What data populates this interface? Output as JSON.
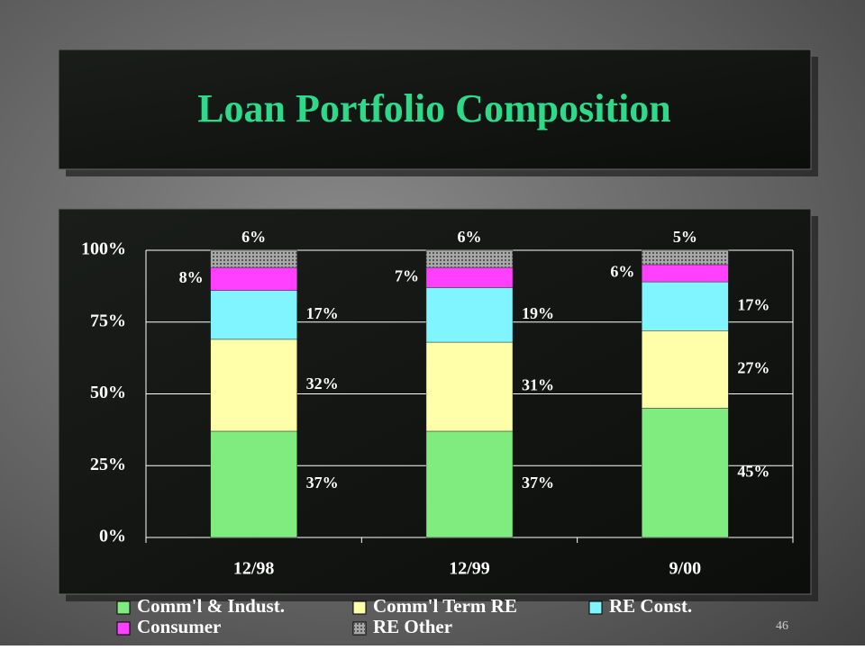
{
  "chart_data": {
    "type": "stacked_bar",
    "title": "Loan Portfolio Composition",
    "categories": [
      "12/98",
      "12/99",
      "9/00"
    ],
    "series": [
      {
        "name": "Comm'l & Indust.",
        "color": "#80ec80",
        "values": [
          37,
          37,
          45
        ],
        "value_labels": [
          "37%",
          "37%",
          "45%"
        ]
      },
      {
        "name": "Comm'l Term RE",
        "color": "#ffffaa",
        "values": [
          32,
          31,
          27
        ],
        "value_labels": [
          "32%",
          "31%",
          "27%"
        ]
      },
      {
        "name": "RE Const.",
        "color": "#80f4ff",
        "values": [
          17,
          19,
          17
        ],
        "value_labels": [
          "17%",
          "19%",
          "17%"
        ]
      },
      {
        "name": "Consumer",
        "color": "#ff40ff",
        "values": [
          8,
          7,
          6
        ],
        "value_labels": [
          "8%",
          "7%",
          "6%"
        ]
      },
      {
        "name": "RE Other",
        "color": "#a8a8a8",
        "values": [
          6,
          6,
          5
        ],
        "value_labels": [
          "6%",
          "6%",
          "5%"
        ]
      }
    ],
    "ylim": [
      0,
      100
    ],
    "yticks": [
      {
        "value": 0,
        "label": "0%"
      },
      {
        "value": 25,
        "label": "25%"
      },
      {
        "value": 50,
        "label": "50%"
      },
      {
        "value": 75,
        "label": "75%"
      },
      {
        "value": 100,
        "label": "100%"
      }
    ],
    "grid": true
  },
  "footer": {
    "page_number": "46"
  }
}
